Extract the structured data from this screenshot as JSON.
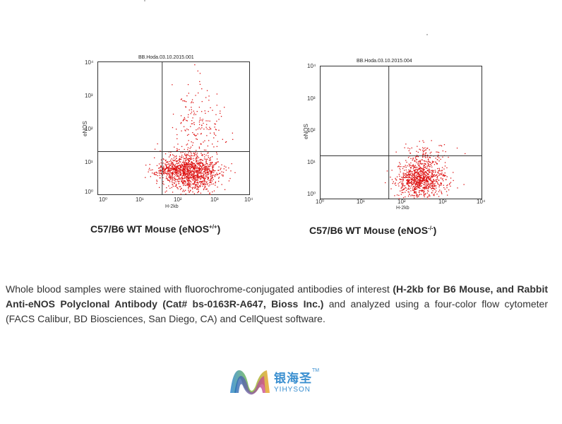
{
  "chart_data": [
    {
      "type": "scatter",
      "title": "BB.Hoda.03.10.2015.001",
      "xlabel": "H-2kb",
      "ylabel": "eNOS",
      "xscale": "log",
      "yscale": "log",
      "xlim": [
        1,
        10000
      ],
      "ylim": [
        1,
        10000
      ],
      "x_ticks": [
        "10⁰",
        "10¹",
        "10²",
        "10³",
        "10⁴"
      ],
      "y_ticks": [
        "10⁰",
        "10¹",
        "10²",
        "10³",
        "10⁴"
      ],
      "gates": {
        "x": 50,
        "y": 20
      },
      "color": "#dd1111",
      "clusters": [
        {
          "x_center": 300,
          "y_center": 5,
          "x_spread_decades": 0.35,
          "y_spread_decades": 0.3,
          "n": 1100
        },
        {
          "x_center": 80,
          "y_center": 6,
          "x_spread_decades": 0.25,
          "y_spread_decades": 0.12,
          "n": 250
        },
        {
          "x_center": 400,
          "y_center": 120,
          "x_spread_decades": 0.35,
          "y_spread_decades": 0.55,
          "n": 180
        }
      ]
    },
    {
      "type": "scatter",
      "title": "BB.Hoda.03.10.2015.004",
      "xlabel": "H-2kb",
      "ylabel": "eNOS",
      "xscale": "log",
      "yscale": "log",
      "xlim": [
        1,
        10000
      ],
      "ylim": [
        1,
        10000
      ],
      "x_ticks": [
        "10⁰",
        "10¹",
        "10²",
        "10³",
        "10⁴"
      ],
      "y_ticks": [
        "10⁰",
        "10¹",
        "10²",
        "10³",
        "10⁴"
      ],
      "gates": {
        "x": 50,
        "y": 20
      },
      "color": "#dd1111",
      "clusters": [
        {
          "x_center": 300,
          "y_center": 4,
          "x_spread_decades": 0.3,
          "y_spread_decades": 0.25,
          "n": 900
        },
        {
          "x_center": 400,
          "y_center": 20,
          "x_spread_decades": 0.3,
          "y_spread_decades": 0.2,
          "n": 120
        }
      ]
    }
  ],
  "captions": {
    "left": {
      "main": "C57/B6 WT Mouse (eNOS",
      "sup": "+/+",
      "end": ")"
    },
    "right": {
      "main": "C57/B6 WT Mouse (eNOS",
      "sup": "-/-",
      "end": ")"
    }
  },
  "description": {
    "p1": "Whole blood samples were stained with fluorochrome-conjugated antibodies of interest ",
    "b1": "(H-2kb for B6 Mouse, and Rabbit Anti-eNOS Polyclonal Antibody (Cat# bs-0163R-A647, Bioss Inc.)",
    "p2": " and analyzed using a four-color flow cytometer (FACS Calibur, BD Biosciences, San Diego, CA) and CellQuest software."
  },
  "logo": {
    "cn": "银海圣",
    "en": "YIHYSON",
    "tm": "TM"
  }
}
